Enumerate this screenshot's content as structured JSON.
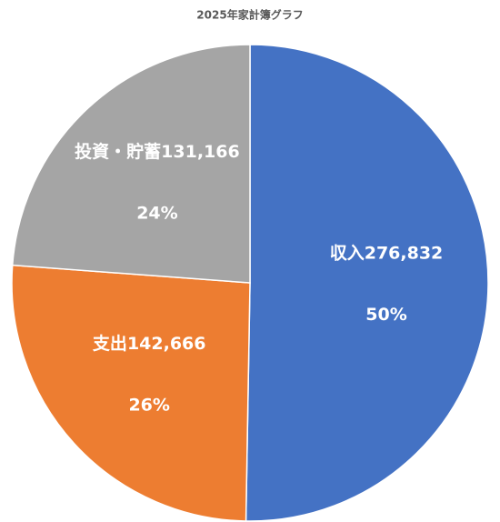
{
  "chart_data": {
    "type": "pie",
    "title": "2025年家計簿グラフ",
    "categories": [
      "収入",
      "支出",
      "投資・貯蓄"
    ],
    "values": [
      276832,
      142666,
      131166
    ],
    "value_labels": [
      "276,832",
      "142,666",
      "131,166"
    ],
    "percent_labels": [
      "50%",
      "26%",
      "24%"
    ],
    "colors": [
      "#4472c4",
      "#ed7d31",
      "#a5a5a5"
    ]
  }
}
